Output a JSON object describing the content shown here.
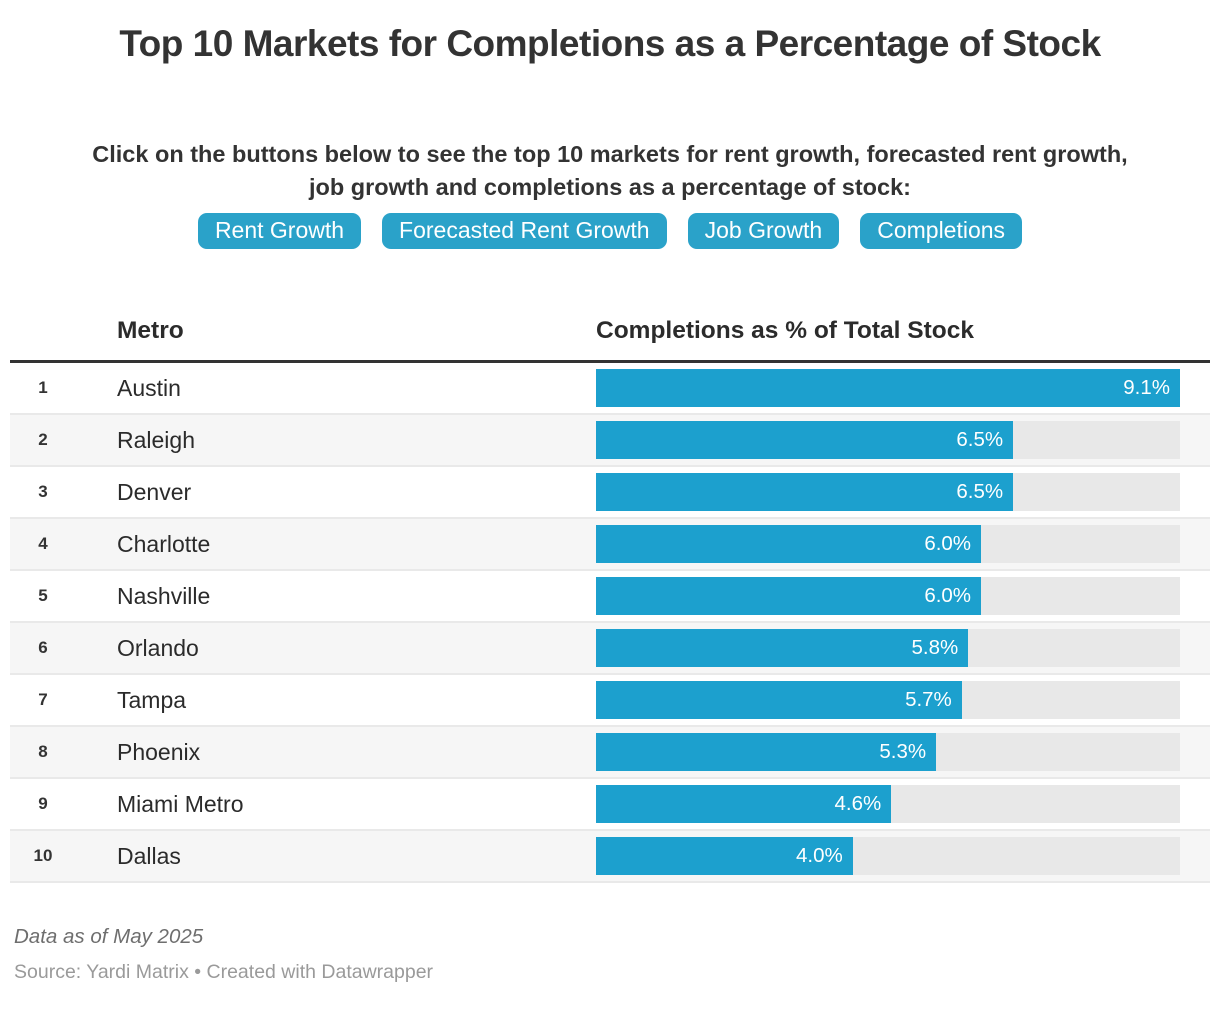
{
  "page": {
    "title": "Top 10 Markets for Completions as a Percentage of Stock",
    "description_line1": "Click on the buttons below to see the top 10 markets for rent growth, forecasted rent growth,",
    "description_line2": "job growth and completions as a percentage of stock:"
  },
  "controls": {
    "buttons": [
      {
        "label": "Rent Growth"
      },
      {
        "label": "Forecasted Rent Growth"
      },
      {
        "label": "Job Growth"
      },
      {
        "label": "Completions"
      }
    ],
    "button_color": "#2aa2c9"
  },
  "table": {
    "header": {
      "metro": "Metro",
      "value": "Completions as % of Total Stock"
    }
  },
  "chart_data": {
    "type": "bar",
    "orientation": "horizontal",
    "title": "Top 10 Markets for Completions as a Percentage of Stock",
    "ranks": [
      "1",
      "2",
      "3",
      "4",
      "5",
      "6",
      "7",
      "8",
      "9",
      "10"
    ],
    "categories": [
      "Austin",
      "Raleigh",
      "Denver",
      "Charlotte",
      "Nashville",
      "Orlando",
      "Tampa",
      "Phoenix",
      "Miami Metro",
      "Dallas"
    ],
    "values": [
      9.1,
      6.5,
      6.5,
      6.0,
      6.0,
      5.8,
      5.7,
      5.3,
      4.6,
      4.0
    ],
    "value_labels": [
      "9.1%",
      "6.5%",
      "6.5%",
      "6.0%",
      "6.0%",
      "5.8%",
      "5.7%",
      "5.3%",
      "4.6%",
      "4.0%"
    ],
    "xlim": [
      0,
      9.1
    ],
    "bar_color": "#1ca0ce",
    "track_color": "#e8e8e8",
    "grid": "off",
    "legend": "none"
  },
  "footer": {
    "note": "Data as of May 2025",
    "source": "Source: Yardi Matrix • Created with Datawrapper"
  }
}
